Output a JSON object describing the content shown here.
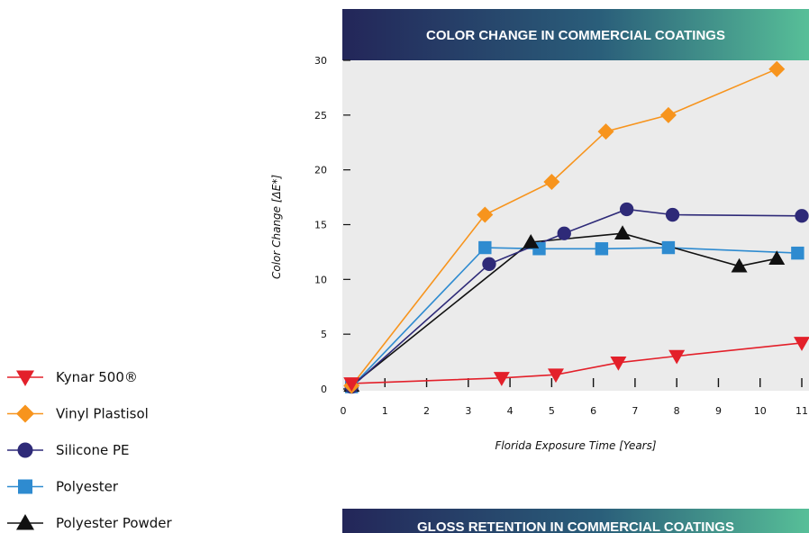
{
  "chart_data": {
    "type": "line",
    "title": "COLOR CHANGE IN COMMERCIAL COATINGS",
    "xlabel": "Florida Exposure Time [Years]",
    "ylabel": "Color Change [ΔE*]",
    "xlim": [
      0,
      11
    ],
    "ylim": [
      0,
      30
    ],
    "xticks": [
      0,
      1,
      2,
      3,
      4,
      5,
      6,
      7,
      8,
      9,
      10,
      11
    ],
    "yticks": [
      0,
      5,
      10,
      15,
      20,
      25,
      30
    ],
    "grid": false,
    "legend_position": "left",
    "series": [
      {
        "name": "Kynar 500®",
        "marker": "triangle-down",
        "color": "#e3202a",
        "points": [
          [
            0.2,
            0.5
          ],
          [
            3.8,
            1.0
          ],
          [
            5.1,
            1.3
          ],
          [
            6.6,
            2.4
          ],
          [
            8.0,
            3.0
          ],
          [
            11.0,
            4.2
          ]
        ]
      },
      {
        "name": "Vinyl Plastisol",
        "marker": "diamond",
        "color": "#f7941d",
        "points": [
          [
            0.2,
            0.3
          ],
          [
            3.4,
            15.9
          ],
          [
            5.0,
            18.9
          ],
          [
            6.3,
            23.5
          ],
          [
            7.8,
            25.0
          ],
          [
            10.4,
            29.2
          ]
        ]
      },
      {
        "name": "Silicone PE",
        "marker": "circle",
        "color": "#2e2a78",
        "points": [
          [
            0.2,
            0.2
          ],
          [
            3.5,
            11.4
          ],
          [
            5.3,
            14.2
          ],
          [
            6.8,
            16.4
          ],
          [
            7.9,
            15.9
          ],
          [
            11.0,
            15.8
          ]
        ]
      },
      {
        "name": "Polyester",
        "marker": "square",
        "color": "#2e8bd0",
        "points": [
          [
            0.2,
            0.2
          ],
          [
            3.4,
            12.9
          ],
          [
            4.7,
            12.8
          ],
          [
            6.2,
            12.8
          ],
          [
            7.8,
            12.9
          ],
          [
            10.9,
            12.4
          ]
        ]
      },
      {
        "name": "Polyester Powder",
        "marker": "triangle-up",
        "color": "#111111",
        "points": [
          [
            0.2,
            0.3
          ],
          [
            4.5,
            13.4
          ],
          [
            6.7,
            14.2
          ],
          [
            9.5,
            11.2
          ],
          [
            10.4,
            11.9
          ]
        ]
      }
    ]
  },
  "second_chart": {
    "title": "GLOSS RETENTION IN COMMERCIAL COATINGS"
  }
}
